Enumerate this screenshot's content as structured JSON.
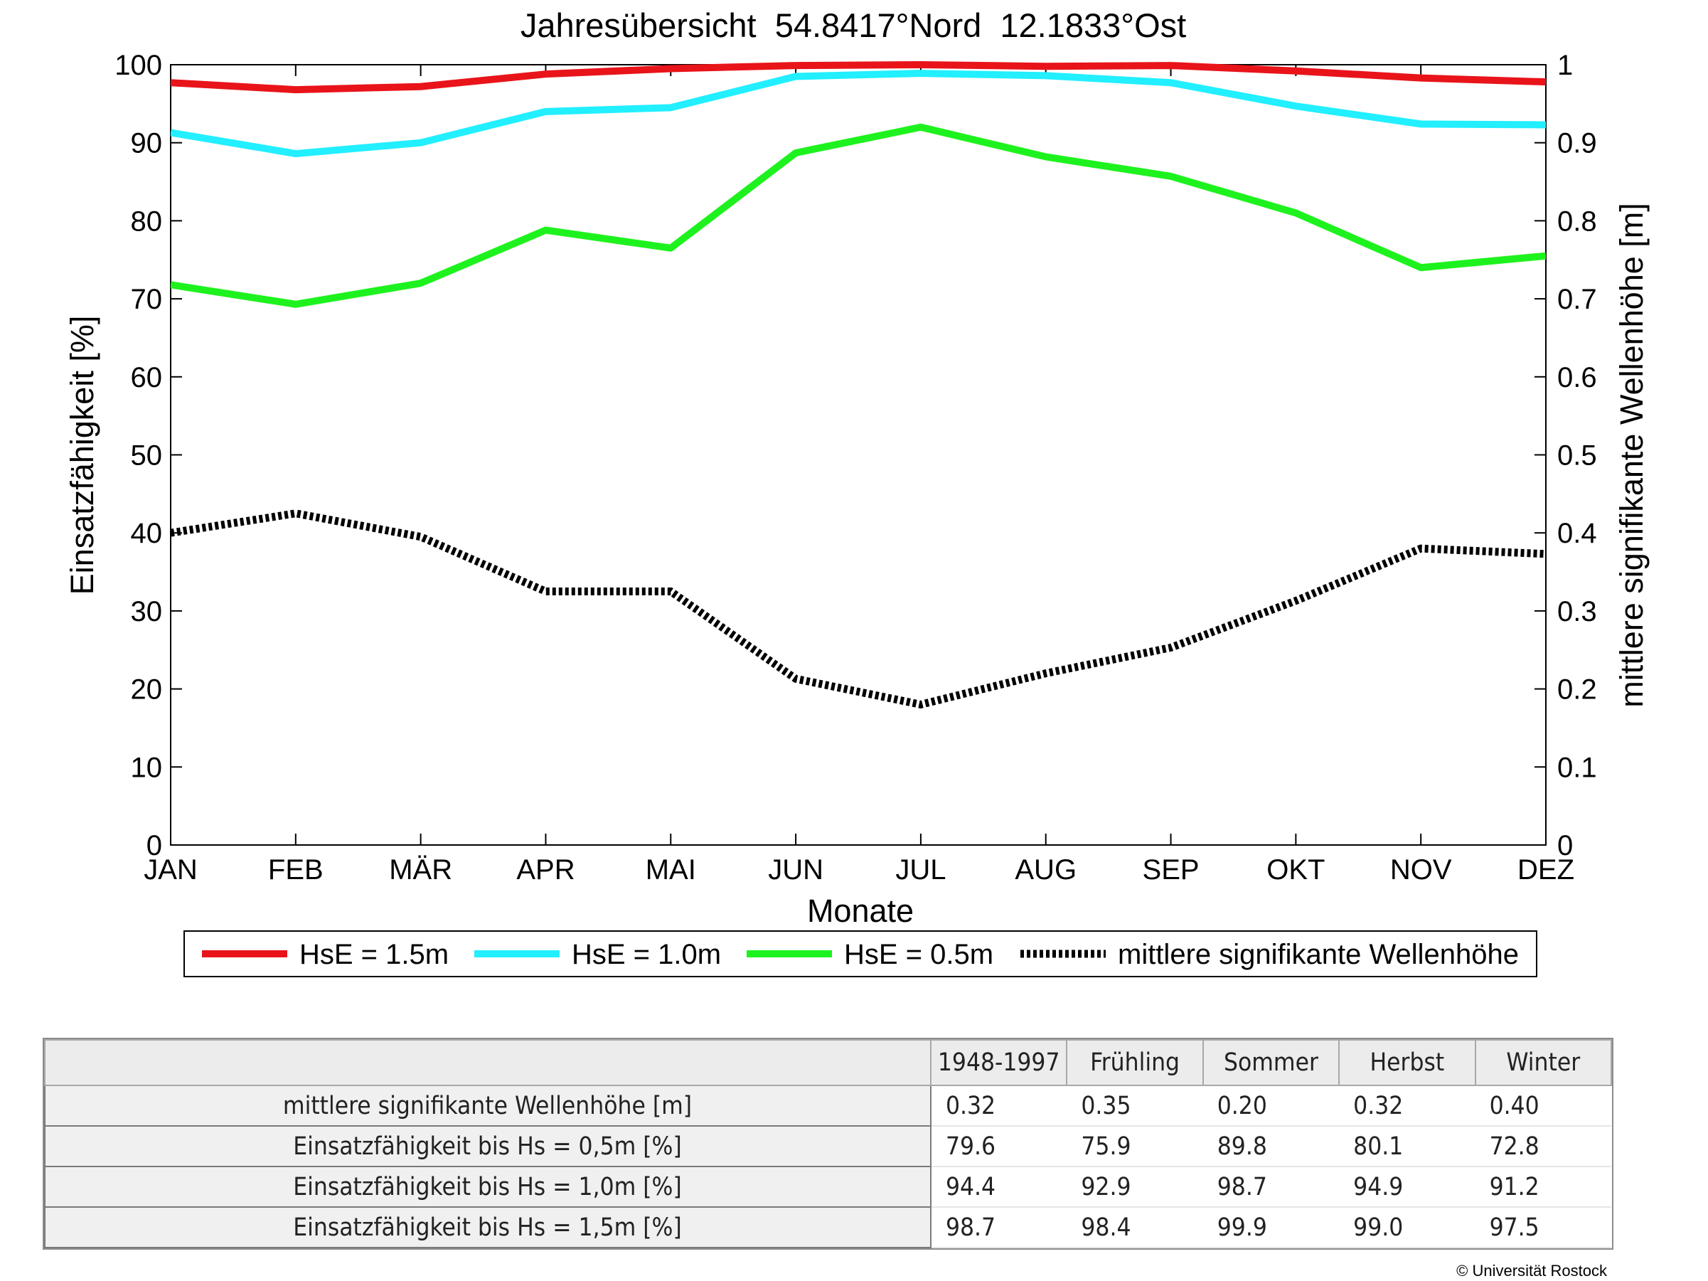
{
  "chart_data": {
    "type": "line",
    "title": "Jahresübersicht  54.8417°Nord  12.1833°Ost",
    "xlabel": "Monate",
    "ylabel_left": "Einsatzfähigkeit [%]",
    "ylabel_right": "mittlere signifikante Wellenhöhe [m]",
    "categories": [
      "JAN",
      "FEB",
      "MÄR",
      "APR",
      "MAI",
      "JUN",
      "JUL",
      "AUG",
      "SEP",
      "OKT",
      "NOV",
      "DEZ"
    ],
    "ylim_left": [
      0,
      100
    ],
    "yticks_left": [
      "0",
      "10",
      "20",
      "30",
      "40",
      "50",
      "60",
      "70",
      "80",
      "90",
      "100"
    ],
    "ylim_right": [
      0,
      1
    ],
    "yticks_right": [
      "0",
      "0.1",
      "0.2",
      "0.3",
      "0.4",
      "0.5",
      "0.6",
      "0.7",
      "0.8",
      "0.9",
      "1"
    ],
    "grid": false,
    "legend_position": "bottom",
    "series": [
      {
        "name": "HsE = 1.5m",
        "axis": "left",
        "color": "#e8141a",
        "style": "solid",
        "values": [
          97.7,
          96.8,
          97.2,
          98.8,
          99.5,
          99.9,
          100,
          99.8,
          99.9,
          99.2,
          98.3,
          97.8
        ]
      },
      {
        "name": "HsE = 1.0m",
        "axis": "left",
        "color": "#22efff",
        "style": "solid",
        "values": [
          91.3,
          88.6,
          90.0,
          94.0,
          94.5,
          98.5,
          98.9,
          98.6,
          97.7,
          94.7,
          92.4,
          92.3
        ]
      },
      {
        "name": "HsE = 0.5m",
        "axis": "left",
        "color": "#1ef21e",
        "style": "solid",
        "values": [
          71.8,
          69.3,
          72.0,
          78.8,
          76.5,
          88.7,
          92.0,
          88.2,
          85.7,
          81.0,
          74.0,
          75.5
        ]
      },
      {
        "name": "mittlere signifikante Wellenhöhe",
        "axis": "right",
        "color": "#000000",
        "style": "dotted",
        "values": [
          0.4,
          0.425,
          0.395,
          0.325,
          0.325,
          0.213,
          0.18,
          0.22,
          0.253,
          0.313,
          0.38,
          0.373
        ]
      }
    ]
  },
  "table": {
    "headers": [
      "1948-1997",
      "Frühling",
      "Sommer",
      "Herbst",
      "Winter"
    ],
    "rows": [
      {
        "label": "mittlere signifikante Wellenhöhe [m]",
        "values": [
          "0.32",
          "0.35",
          "0.20",
          "0.32",
          "0.40"
        ]
      },
      {
        "label": "Einsatzfähigkeit bis Hs = 0,5m [%]",
        "values": [
          "79.6",
          "75.9",
          "89.8",
          "80.1",
          "72.8"
        ]
      },
      {
        "label": "Einsatzfähigkeit bis Hs = 1,0m [%]",
        "values": [
          "94.4",
          "92.9",
          "98.7",
          "94.9",
          "91.2"
        ]
      },
      {
        "label": "Einsatzfähigkeit bis Hs = 1,5m [%]",
        "values": [
          "98.7",
          "98.4",
          "99.9",
          "99.0",
          "97.5"
        ]
      }
    ]
  },
  "footer": {
    "copyright": "© Universität Rostock"
  }
}
